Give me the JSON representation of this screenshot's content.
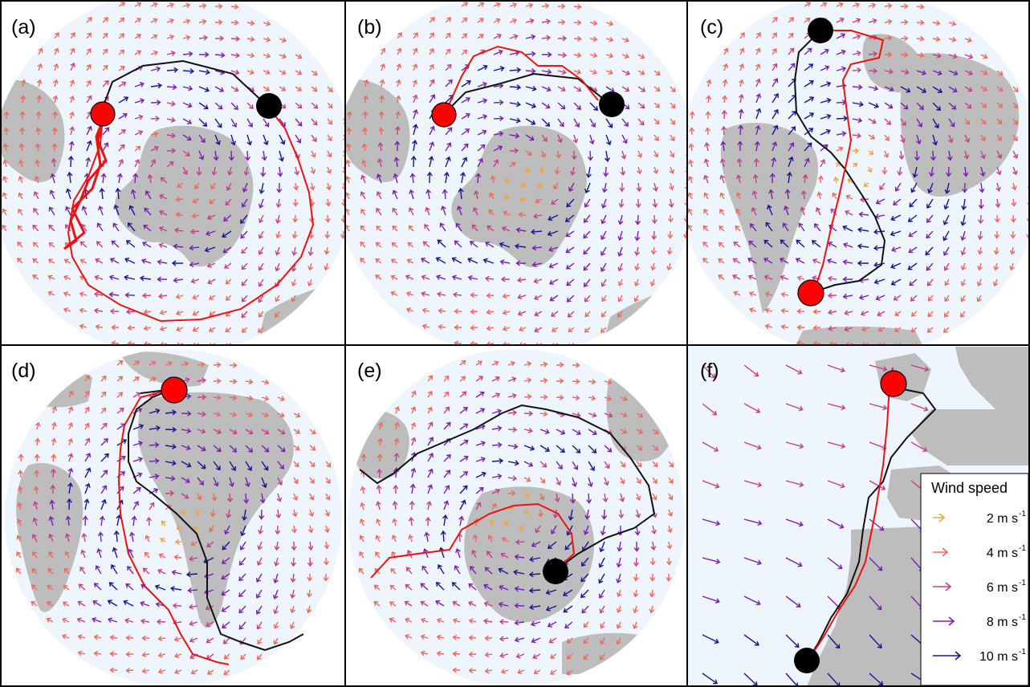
{
  "panels": [
    {
      "label": "(a)",
      "type": "circle"
    },
    {
      "label": "(b)",
      "type": "circle"
    },
    {
      "label": "(c)",
      "type": "circle"
    },
    {
      "label": "(d)",
      "type": "circle"
    },
    {
      "label": "(e)",
      "type": "circle"
    },
    {
      "label": "(f)",
      "type": "rect"
    }
  ],
  "legend": {
    "title": "Wind speed",
    "unit": "m s",
    "unit_exponent": "-1",
    "items": [
      {
        "value": "2",
        "color": "#f5a23a"
      },
      {
        "value": "4",
        "color": "#ea6a5c"
      },
      {
        "value": "6",
        "color": "#c53f8f"
      },
      {
        "value": "8",
        "color": "#7a1fb0"
      },
      {
        "value": "10",
        "color": "#1c1490"
      }
    ]
  },
  "markers": {
    "start_color": "#ff0000",
    "end_color": "#000000",
    "track_red": "#ee1111",
    "track_black": "#111111"
  },
  "colors": {
    "ocean": "#eef5fc",
    "land": "#bdbdbd",
    "border": "#000000"
  }
}
